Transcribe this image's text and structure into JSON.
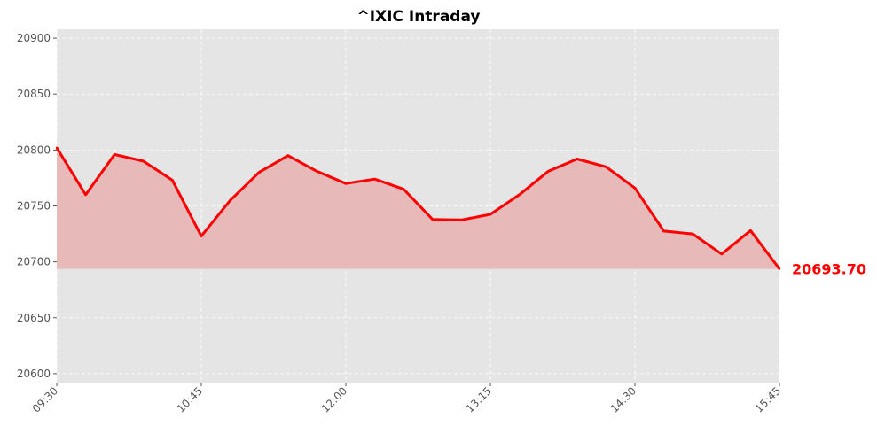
{
  "chart_data": {
    "type": "area",
    "title": "^IXIC Intraday",
    "xlabel": "",
    "ylabel": "",
    "x": [
      "09:30",
      "09:45",
      "10:00",
      "10:15",
      "10:30",
      "10:45",
      "11:00",
      "11:15",
      "11:30",
      "11:45",
      "12:00",
      "12:15",
      "12:30",
      "12:45",
      "13:00",
      "13:15",
      "13:30",
      "13:45",
      "14:00",
      "14:15",
      "14:30",
      "14:45",
      "15:00",
      "15:15",
      "15:30",
      "15:45"
    ],
    "series": [
      {
        "values": [
          20802,
          20760,
          20796,
          20790,
          20773,
          20723,
          20755,
          20780,
          20795,
          20781,
          20770,
          20774,
          20765,
          20738,
          20737.5,
          20742.5,
          20760,
          20781,
          20792,
          20785,
          20766,
          20727.5,
          20725,
          20707,
          20728,
          20693.7
        ],
        "color": "#ff0000"
      }
    ],
    "fill_color": "#e8b4b4",
    "fill_baseline": 20693.7,
    "xticks": [
      "09:30",
      "10:45",
      "12:00",
      "13:15",
      "14:30",
      "15:45"
    ],
    "yticks": [
      20600,
      20650,
      20700,
      20750,
      20800,
      20850,
      20900
    ],
    "ylim": [
      20592,
      20908
    ],
    "last_value_label": "20693.70",
    "grid": true,
    "background": "#e5e5e5",
    "legend": "none"
  }
}
